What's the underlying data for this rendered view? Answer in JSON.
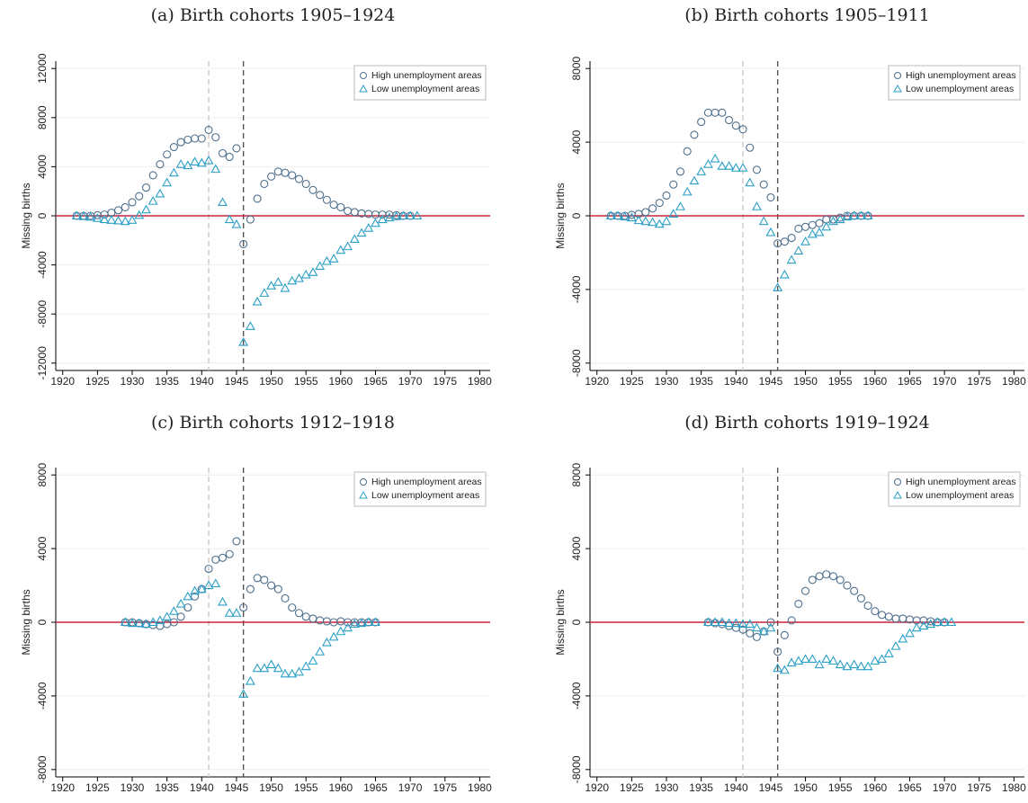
{
  "chart_data": [
    {
      "type": "scatter",
      "title": "(a) Birth cohorts 1905–1924",
      "y_label": "Missing births",
      "xlim": [
        1919,
        1981.5
      ],
      "xticks": [
        1920,
        1925,
        1930,
        1935,
        1940,
        1945,
        1950,
        1955,
        1960,
        1965,
        1970,
        1975,
        1980
      ],
      "ylim": [
        -12600,
        12600
      ],
      "yticks": [
        -12000,
        -8000,
        -4000,
        0,
        4000,
        8000,
        12000
      ],
      "grid": true,
      "legend": "upper right",
      "vlines": [
        {
          "value": 1941,
          "color": "#c8c8c8"
        },
        {
          "value": 1946,
          "color": "#555555"
        }
      ],
      "hline": {
        "value": 0,
        "color": "#c8233a"
      },
      "x": [
        1922,
        1923,
        1924,
        1925,
        1926,
        1927,
        1928,
        1929,
        1930,
        1931,
        1932,
        1933,
        1934,
        1935,
        1936,
        1937,
        1938,
        1939,
        1940,
        1941,
        1942,
        1943,
        1944,
        1945,
        1946,
        1947,
        1948,
        1949,
        1950,
        1951,
        1952,
        1953,
        1954,
        1955,
        1956,
        1957,
        1958,
        1959,
        1960,
        1961,
        1962,
        1963,
        1964,
        1965,
        1966,
        1967,
        1968,
        1969,
        1970,
        1971
      ],
      "series": [
        {
          "name": "High unemployment areas",
          "color": "#4f6f8c",
          "marker": "circle",
          "values": [
            0,
            0,
            0,
            50,
            100,
            250,
            450,
            700,
            1100,
            1600,
            2300,
            3300,
            4200,
            5000,
            5600,
            6000,
            6200,
            6300,
            6300,
            7000,
            6400,
            5100,
            4800,
            5500,
            -2300,
            -300,
            1400,
            2600,
            3200,
            3600,
            3500,
            3300,
            3000,
            2600,
            2100,
            1700,
            1300,
            900,
            700,
            400,
            300,
            200,
            150,
            100,
            100,
            100,
            50,
            0,
            0,
            null
          ]
        },
        {
          "name": "Low unemployment areas",
          "color": "#2b9fc6",
          "marker": "triangle",
          "values": [
            0,
            -50,
            -100,
            -200,
            -300,
            -350,
            -400,
            -450,
            -350,
            50,
            500,
            1200,
            1800,
            2700,
            3500,
            4200,
            4100,
            4400,
            4300,
            4500,
            3800,
            1100,
            -300,
            -700,
            -10300,
            -9000,
            -7000,
            -6300,
            -5700,
            -5400,
            -5900,
            -5300,
            -5100,
            -4800,
            -4600,
            -4100,
            -3700,
            -3500,
            -2800,
            -2500,
            -1900,
            -1400,
            -1000,
            -600,
            -300,
            -150,
            -50,
            0,
            0,
            0
          ]
        }
      ]
    },
    {
      "type": "scatter",
      "title": "(b) Birth cohorts 1905–1911",
      "y_label": "Missing births",
      "xlim": [
        1919,
        1981.5
      ],
      "xticks": [
        1920,
        1925,
        1930,
        1935,
        1940,
        1945,
        1950,
        1955,
        1960,
        1965,
        1970,
        1975,
        1980
      ],
      "ylim": [
        -8400,
        8400
      ],
      "yticks": [
        -8000,
        -4000,
        0,
        4000,
        8000
      ],
      "grid": true,
      "legend": "upper right",
      "vlines": [
        {
          "value": 1941,
          "color": "#c8c8c8"
        },
        {
          "value": 1946,
          "color": "#555555"
        }
      ],
      "hline": {
        "value": 0,
        "color": "#c8233a"
      },
      "x": [
        1922,
        1923,
        1924,
        1925,
        1926,
        1927,
        1928,
        1929,
        1930,
        1931,
        1932,
        1933,
        1934,
        1935,
        1936,
        1937,
        1938,
        1939,
        1940,
        1941,
        1942,
        1943,
        1944,
        1945,
        1946,
        1947,
        1948,
        1949,
        1950,
        1951,
        1952,
        1953,
        1954,
        1955,
        1956,
        1957,
        1958,
        1959
      ],
      "series": [
        {
          "name": "High unemployment areas",
          "color": "#4f6f8c",
          "marker": "circle",
          "values": [
            0,
            0,
            0,
            50,
            100,
            200,
            400,
            700,
            1100,
            1700,
            2400,
            3500,
            4400,
            5100,
            5600,
            5600,
            5600,
            5200,
            4900,
            4700,
            3700,
            2500,
            1700,
            1000,
            -1500,
            -1400,
            -1200,
            -700,
            -600,
            -500,
            -400,
            -200,
            -200,
            -100,
            0,
            0,
            0,
            0
          ]
        },
        {
          "name": "Low unemployment areas",
          "color": "#2b9fc6",
          "marker": "triangle",
          "values": [
            0,
            0,
            -50,
            -100,
            -250,
            -300,
            -350,
            -450,
            -300,
            100,
            500,
            1300,
            1900,
            2400,
            2800,
            3100,
            2700,
            2700,
            2600,
            2600,
            1800,
            500,
            -300,
            -900,
            -3900,
            -3200,
            -2400,
            -1900,
            -1400,
            -1000,
            -900,
            -600,
            -300,
            -200,
            -50,
            0,
            0,
            0
          ]
        }
      ]
    },
    {
      "type": "scatter",
      "title": "(c) Birth cohorts 1912–1918",
      "y_label": "Missing births",
      "xlim": [
        1919,
        1981.5
      ],
      "xticks": [
        1920,
        1925,
        1930,
        1935,
        1940,
        1945,
        1950,
        1955,
        1960,
        1965,
        1970,
        1975,
        1980
      ],
      "ylim": [
        -8400,
        8400
      ],
      "yticks": [
        -8000,
        -4000,
        0,
        4000,
        8000
      ],
      "grid": true,
      "legend": "upper right",
      "vlines": [
        {
          "value": 1941,
          "color": "#c8c8c8"
        },
        {
          "value": 1946,
          "color": "#555555"
        }
      ],
      "hline": {
        "value": 0,
        "color": "#c8233a"
      },
      "x": [
        1929,
        1930,
        1931,
        1932,
        1933,
        1934,
        1935,
        1936,
        1937,
        1938,
        1939,
        1940,
        1941,
        1942,
        1943,
        1944,
        1945,
        1946,
        1947,
        1948,
        1949,
        1950,
        1951,
        1952,
        1953,
        1954,
        1955,
        1956,
        1957,
        1958,
        1959,
        1960,
        1961,
        1962,
        1963,
        1964,
        1965
      ],
      "series": [
        {
          "name": "High unemployment areas",
          "color": "#4f6f8c",
          "marker": "circle",
          "values": [
            0,
            0,
            -50,
            -100,
            -150,
            -200,
            -100,
            0,
            300,
            800,
            1400,
            1800,
            2900,
            3400,
            3500,
            3700,
            4400,
            800,
            1800,
            2400,
            2300,
            2000,
            1800,
            1300,
            800,
            500,
            300,
            200,
            100,
            50,
            0,
            50,
            0,
            0,
            0,
            0,
            0
          ]
        },
        {
          "name": "Low unemployment areas",
          "color": "#2b9fc6",
          "marker": "triangle",
          "values": [
            0,
            -50,
            -50,
            -100,
            0,
            100,
            300,
            600,
            1000,
            1400,
            1700,
            1800,
            2000,
            2100,
            1100,
            500,
            500,
            -3900,
            -3200,
            -2500,
            -2500,
            -2300,
            -2500,
            -2800,
            -2800,
            -2700,
            -2400,
            -2100,
            -1600,
            -1100,
            -800,
            -500,
            -300,
            -100,
            -50,
            0,
            0
          ]
        }
      ]
    },
    {
      "type": "scatter",
      "title": "(d) Birth cohorts 1919–1924",
      "y_label": "Missing births",
      "xlim": [
        1919,
        1981.5
      ],
      "xticks": [
        1920,
        1925,
        1930,
        1935,
        1940,
        1945,
        1950,
        1955,
        1960,
        1965,
        1970,
        1975,
        1980
      ],
      "ylim": [
        -8400,
        8400
      ],
      "yticks": [
        -8000,
        -4000,
        0,
        4000,
        8000
      ],
      "grid": true,
      "legend": "upper right",
      "vlines": [
        {
          "value": 1941,
          "color": "#c8c8c8"
        },
        {
          "value": 1946,
          "color": "#555555"
        }
      ],
      "hline": {
        "value": 0,
        "color": "#c8233a"
      },
      "x": [
        1936,
        1937,
        1938,
        1939,
        1940,
        1941,
        1942,
        1943,
        1944,
        1945,
        1946,
        1947,
        1948,
        1949,
        1950,
        1951,
        1952,
        1953,
        1954,
        1955,
        1956,
        1957,
        1958,
        1959,
        1960,
        1961,
        1962,
        1963,
        1964,
        1965,
        1966,
        1967,
        1968,
        1969,
        1970,
        1971
      ],
      "series": [
        {
          "name": "High unemployment areas",
          "color": "#4f6f8c",
          "marker": "circle",
          "values": [
            0,
            -50,
            -100,
            -200,
            -300,
            -400,
            -600,
            -800,
            -500,
            0,
            -1600,
            -700,
            100,
            1000,
            1700,
            2300,
            2500,
            2600,
            2500,
            2300,
            2000,
            1700,
            1300,
            900,
            600,
            400,
            300,
            200,
            200,
            150,
            100,
            100,
            50,
            0,
            0,
            null
          ]
        },
        {
          "name": "Low unemployment areas",
          "color": "#2b9fc6",
          "marker": "triangle",
          "values": [
            0,
            0,
            0,
            -50,
            -50,
            -100,
            -100,
            -300,
            -500,
            -300,
            -2500,
            -2600,
            -2200,
            -2100,
            -2000,
            -2000,
            -2300,
            -2000,
            -2100,
            -2300,
            -2400,
            -2300,
            -2400,
            -2400,
            -2100,
            -2000,
            -1700,
            -1300,
            -900,
            -600,
            -300,
            -200,
            -100,
            0,
            0,
            0
          ]
        }
      ]
    }
  ]
}
